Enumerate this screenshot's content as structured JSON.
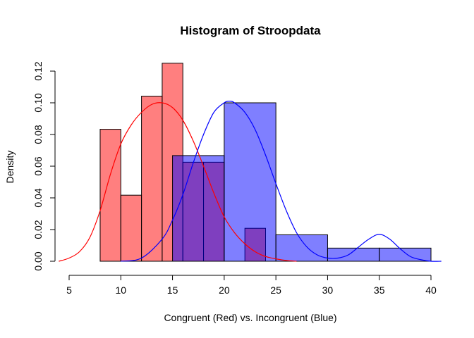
{
  "chart_data": {
    "type": "histogram",
    "title": "Histogram of Stroopdata",
    "xlabel": "Congruent (Red) vs. Incongruent (Blue)",
    "ylabel": "Density",
    "xlim": [
      4,
      41
    ],
    "ylim": [
      0,
      0.125
    ],
    "x_ticks": [
      5,
      10,
      15,
      20,
      25,
      30,
      35,
      40
    ],
    "y_ticks": [
      0.0,
      0.02,
      0.04,
      0.06,
      0.08,
      0.1,
      0.12
    ],
    "y_tick_labels": [
      "0.00",
      "0.02",
      "0.04",
      "0.06",
      "0.08",
      "0.10",
      "0.12"
    ],
    "grid": false,
    "series": [
      {
        "color": "#ff0000",
        "bar_fill": "rgba(255,0,0,0.5)",
        "bins": [
          {
            "from": 8,
            "to": 10,
            "density": 0.0833
          },
          {
            "from": 10,
            "to": 12,
            "density": 0.0417
          },
          {
            "from": 12,
            "to": 14,
            "density": 0.1042
          },
          {
            "from": 14,
            "to": 16,
            "density": 0.125
          },
          {
            "from": 16,
            "to": 18,
            "density": 0.0625
          },
          {
            "from": 18,
            "to": 20,
            "density": 0.0625
          },
          {
            "from": 20,
            "to": 22,
            "density": 0.0
          },
          {
            "from": 22,
            "to": 24,
            "density": 0.0208
          }
        ],
        "density_curve": {
          "x": [
            4.0,
            5.0,
            6.0,
            7.0,
            8.0,
            9.0,
            10.0,
            11.0,
            12.0,
            13.0,
            14.0,
            15.0,
            16.0,
            17.0,
            18.0,
            19.0,
            20.0,
            21.0,
            22.0,
            23.0,
            24.0,
            25.0,
            26.0,
            27.0
          ],
          "y": [
            0.0,
            0.002,
            0.006,
            0.015,
            0.032,
            0.055,
            0.074,
            0.086,
            0.094,
            0.099,
            0.1,
            0.097,
            0.089,
            0.076,
            0.06,
            0.043,
            0.028,
            0.018,
            0.011,
            0.006,
            0.003,
            0.0015,
            0.0005,
            0.0
          ]
        }
      },
      {
        "color": "#0000ff",
        "bar_fill": "rgba(0,0,255,0.5)",
        "bins": [
          {
            "from": 15,
            "to": 20,
            "density": 0.0667
          },
          {
            "from": 20,
            "to": 25,
            "density": 0.1
          },
          {
            "from": 25,
            "to": 30,
            "density": 0.0167
          },
          {
            "from": 30,
            "to": 35,
            "density": 0.0083
          },
          {
            "from": 35,
            "to": 40,
            "density": 0.0083
          }
        ],
        "density_curve": {
          "x": [
            10.0,
            12.0,
            14.0,
            15.0,
            16.0,
            17.0,
            18.0,
            19.0,
            20.0,
            20.5,
            21.0,
            22.0,
            23.0,
            24.0,
            25.0,
            26.0,
            27.0,
            28.0,
            29.0,
            30.0,
            31.0,
            32.0,
            33.0,
            34.0,
            35.0,
            36.0,
            37.0,
            38.0,
            39.0,
            40.0,
            41.0
          ],
          "y": [
            0.0,
            0.002,
            0.014,
            0.026,
            0.042,
            0.062,
            0.08,
            0.094,
            0.1,
            0.101,
            0.1,
            0.094,
            0.083,
            0.067,
            0.049,
            0.032,
            0.018,
            0.009,
            0.004,
            0.002,
            0.002,
            0.004,
            0.009,
            0.014,
            0.017,
            0.014,
            0.008,
            0.003,
            0.001,
            0.0,
            0.0
          ]
        }
      }
    ]
  }
}
